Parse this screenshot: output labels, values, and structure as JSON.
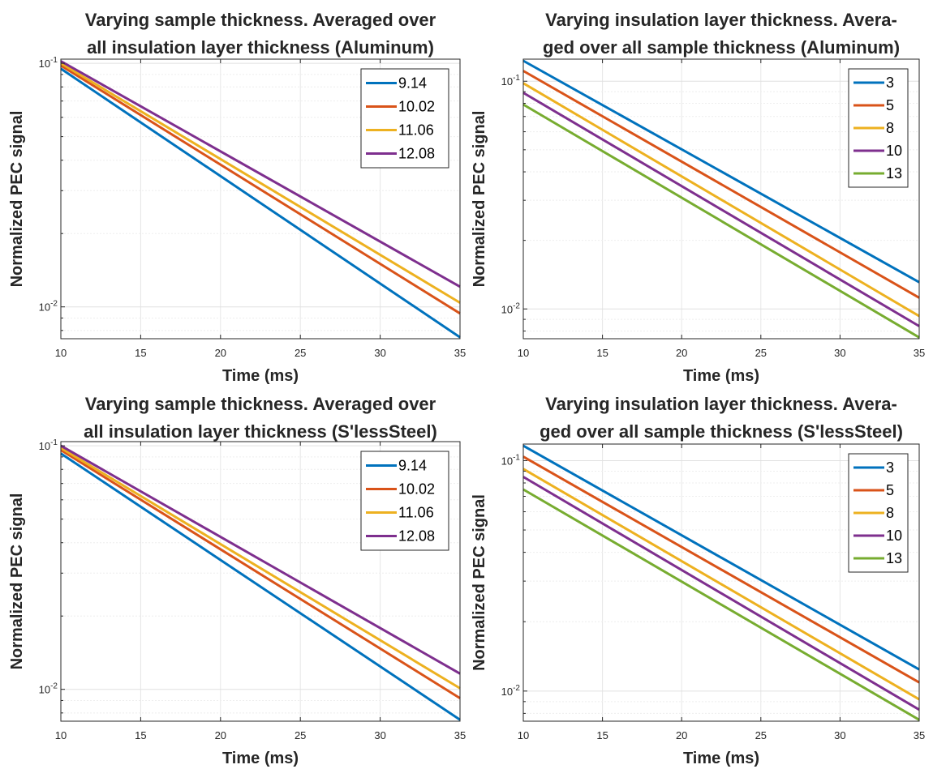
{
  "chart_data": [
    {
      "type": "line",
      "title": [
        "Varying sample thickness. Averaged over",
        "all insulation layer thickness (Aluminum)"
      ],
      "xlabel": "Time (ms)",
      "ylabel": "Normalized PEC signal",
      "x_scale": "linear",
      "y_scale": "log",
      "xlim": [
        10,
        35
      ],
      "ylim": [
        0.0074,
        0.104
      ],
      "x_ticks": [
        10,
        15,
        20,
        25,
        30,
        35
      ],
      "x_tick_labels": [
        "10",
        "15",
        "20",
        "25",
        "30",
        "35"
      ],
      "y_ticks": [
        0.01,
        0.1
      ],
      "y_tick_labels": [
        {
          "base": "10",
          "exp": "-2"
        },
        {
          "base": "10",
          "exp": "-1"
        }
      ],
      "grid": true,
      "legend_position": "top-right",
      "series": [
        {
          "name": "9.14",
          "color": "#0072BD",
          "x": [
            10,
            35
          ],
          "y": [
            0.095,
            0.0075
          ]
        },
        {
          "name": "10.02",
          "color": "#D95319",
          "x": [
            10,
            35
          ],
          "y": [
            0.098,
            0.0094
          ]
        },
        {
          "name": "11.06",
          "color": "#EDB120",
          "x": [
            10,
            35
          ],
          "y": [
            0.1,
            0.0104
          ]
        },
        {
          "name": "12.08",
          "color": "#7E2F8E",
          "x": [
            10,
            35
          ],
          "y": [
            0.102,
            0.0121
          ]
        }
      ]
    },
    {
      "type": "line",
      "title": [
        "Varying insulation layer thickness. Avera-",
        "ged over all sample thickness (Aluminum)"
      ],
      "xlabel": "Time (ms)",
      "ylabel": "Normalized PEC signal",
      "x_scale": "linear",
      "y_scale": "log",
      "xlim": [
        10,
        35
      ],
      "ylim": [
        0.0074,
        0.125
      ],
      "x_ticks": [
        10,
        15,
        20,
        25,
        30,
        35
      ],
      "x_tick_labels": [
        "10",
        "15",
        "20",
        "25",
        "30",
        "35"
      ],
      "y_ticks": [
        0.01,
        0.1
      ],
      "y_tick_labels": [
        {
          "base": "10",
          "exp": "-2"
        },
        {
          "base": "10",
          "exp": "-1"
        }
      ],
      "grid": true,
      "legend_position": "top-right",
      "series": [
        {
          "name": "3",
          "color": "#0072BD",
          "x": [
            10,
            35
          ],
          "y": [
            0.123,
            0.0131
          ]
        },
        {
          "name": "5",
          "color": "#D95319",
          "x": [
            10,
            35
          ],
          "y": [
            0.111,
            0.0112
          ]
        },
        {
          "name": "8",
          "color": "#EDB120",
          "x": [
            10,
            35
          ],
          "y": [
            0.098,
            0.0093
          ]
        },
        {
          "name": "10",
          "color": "#7E2F8E",
          "x": [
            10,
            35
          ],
          "y": [
            0.089,
            0.0084
          ]
        },
        {
          "name": "13",
          "color": "#77AC30",
          "x": [
            10,
            35
          ],
          "y": [
            0.079,
            0.0075
          ]
        }
      ]
    },
    {
      "type": "line",
      "title": [
        "Varying sample thickness. Averaged over",
        "all insulation layer thickness (S'lessSteel)"
      ],
      "xlabel": "Time (ms)",
      "ylabel": "Normalized PEC signal",
      "x_scale": "linear",
      "y_scale": "log",
      "xlim": [
        10,
        35
      ],
      "ylim": [
        0.0074,
        0.104
      ],
      "x_ticks": [
        10,
        15,
        20,
        25,
        30,
        35
      ],
      "x_tick_labels": [
        "10",
        "15",
        "20",
        "25",
        "30",
        "35"
      ],
      "y_ticks": [
        0.01,
        0.1
      ],
      "y_tick_labels": [
        {
          "base": "10",
          "exp": "-2"
        },
        {
          "base": "10",
          "exp": "-1"
        }
      ],
      "grid": true,
      "legend_position": "top-right",
      "series": [
        {
          "name": "9.14",
          "color": "#0072BD",
          "x": [
            10,
            35
          ],
          "y": [
            0.093,
            0.0075
          ]
        },
        {
          "name": "10.02",
          "color": "#D95319",
          "x": [
            10,
            35
          ],
          "y": [
            0.096,
            0.0092
          ]
        },
        {
          "name": "11.06",
          "color": "#EDB120",
          "x": [
            10,
            35
          ],
          "y": [
            0.098,
            0.0101
          ]
        },
        {
          "name": "12.08",
          "color": "#7E2F8E",
          "x": [
            10,
            35
          ],
          "y": [
            0.1,
            0.0116
          ]
        }
      ]
    },
    {
      "type": "line",
      "title": [
        "Varying insulation layer thickness. Avera-",
        "ged over all sample thickness (S'lessSteel)"
      ],
      "xlabel": "Time (ms)",
      "ylabel": "Normalized PEC signal",
      "x_scale": "linear",
      "y_scale": "log",
      "xlim": [
        10,
        35
      ],
      "ylim": [
        0.0074,
        0.118
      ],
      "x_ticks": [
        10,
        15,
        20,
        25,
        30,
        35
      ],
      "x_tick_labels": [
        "10",
        "15",
        "20",
        "25",
        "30",
        "35"
      ],
      "y_ticks": [
        0.01,
        0.1
      ],
      "y_tick_labels": [
        {
          "base": "10",
          "exp": "-2"
        },
        {
          "base": "10",
          "exp": "-1"
        }
      ],
      "grid": true,
      "legend_position": "top-right",
      "series": [
        {
          "name": "3",
          "color": "#0072BD",
          "x": [
            10,
            35
          ],
          "y": [
            0.116,
            0.0124
          ]
        },
        {
          "name": "5",
          "color": "#D95319",
          "x": [
            10,
            35
          ],
          "y": [
            0.104,
            0.0109
          ]
        },
        {
          "name": "8",
          "color": "#EDB120",
          "x": [
            10,
            35
          ],
          "y": [
            0.092,
            0.0092
          ]
        },
        {
          "name": "10",
          "color": "#7E2F8E",
          "x": [
            10,
            35
          ],
          "y": [
            0.085,
            0.0083
          ]
        },
        {
          "name": "13",
          "color": "#77AC30",
          "x": [
            10,
            35
          ],
          "y": [
            0.075,
            0.0075
          ]
        }
      ]
    }
  ]
}
